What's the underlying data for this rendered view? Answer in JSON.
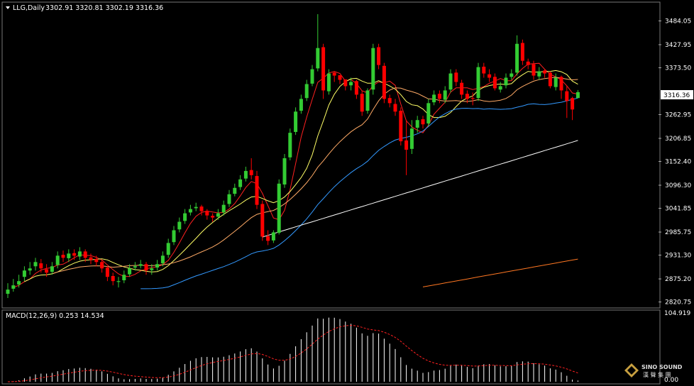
{
  "header": {
    "symbol": "LLG,Daily",
    "ohlc": "3302.91 3320.81 3302.19 3316.36"
  },
  "price_axis": {
    "ticks": [
      "3484.05",
      "3427.95",
      "3373.50",
      "3262.95",
      "3206.85",
      "3152.40",
      "3096.30",
      "3041.85",
      "2985.75",
      "2931.30",
      "2875.20",
      "2820.75"
    ],
    "current_price": "3316.36"
  },
  "macd": {
    "label": "MACD(12,26,9) 0.253 14.534",
    "ticks": [
      "104.919",
      "0.00"
    ]
  },
  "watermark": {
    "brand": "SINO SOUND",
    "cn": "漢 聲 集 團"
  },
  "colors": {
    "bull": "#33cc33",
    "bear": "#ff0000",
    "ma_red": "#ff2020",
    "ma_yellow": "#ffff66",
    "ma_orange_light": "#ffaa66",
    "ma_blue": "#3399ff",
    "ma_white": "#ffffff",
    "ma_orange": "#ff7722",
    "signal": "#ff2020"
  },
  "chart_data": {
    "type": "candlestick",
    "ylim": [
      2810,
      3525
    ],
    "candles_note": "Daily OHLC, approx. read from chart",
    "closes": [
      2850,
      2860,
      2870,
      2895,
      2900,
      2915,
      2900,
      2890,
      2905,
      2930,
      2925,
      2935,
      2930,
      2940,
      2925,
      2920,
      2915,
      2900,
      2880,
      2870,
      2870,
      2885,
      2900,
      2905,
      2910,
      2895,
      2900,
      2910,
      2930,
      2960,
      2990,
      3010,
      3030,
      3040,
      3045,
      3035,
      3025,
      3020,
      3030,
      3050,
      3075,
      3090,
      3110,
      3130,
      3120,
      3050,
      2975,
      2965,
      2985,
      3100,
      3160,
      3220,
      3270,
      3300,
      3335,
      3370,
      3420,
      3320,
      3360,
      3355,
      3345,
      3330,
      3340,
      3310,
      3270,
      3320,
      3420,
      3380,
      3300,
      3290,
      3270,
      3200,
      3180,
      3230,
      3250,
      3240,
      3290,
      3310,
      3300,
      3320,
      3360,
      3340,
      3310,
      3300,
      3300,
      3375,
      3360,
      3350,
      3325,
      3330,
      3350,
      3360,
      3430,
      3390,
      3380,
      3355,
      3365,
      3360,
      3330,
      3350,
      3320,
      3295,
      3275,
      3316
    ],
    "opens": [
      2840,
      2852,
      2862,
      2880,
      2895,
      2905,
      2912,
      2898,
      2892,
      2908,
      2932,
      2924,
      2936,
      2928,
      2940,
      2926,
      2922,
      2915,
      2902,
      2882,
      2868,
      2872,
      2886,
      2902,
      2906,
      2910,
      2896,
      2902,
      2912,
      2932,
      2962,
      2992,
      3012,
      3032,
      3042,
      3046,
      3036,
      3024,
      3022,
      3032,
      3052,
      3076,
      3092,
      3112,
      3132,
      3118,
      3052,
      2976,
      2966,
      2984,
      3098,
      3162,
      3222,
      3272,
      3302,
      3336,
      3372,
      3422,
      3318,
      3362,
      3356,
      3346,
      3332,
      3342,
      3312,
      3272,
      3322,
      3422,
      3378,
      3302,
      3288,
      3272,
      3202,
      3182,
      3232,
      3252,
      3242,
      3292,
      3312,
      3298,
      3322,
      3362,
      3338,
      3312,
      3302,
      3302,
      3376,
      3358,
      3352,
      3322,
      3332,
      3352,
      3362,
      3432,
      3388,
      3382,
      3353,
      3367,
      3362,
      3328,
      3352,
      3318,
      3302,
      3302
    ],
    "highs": [
      2865,
      2875,
      2885,
      2905,
      2915,
      2925,
      2922,
      2910,
      2915,
      2940,
      2942,
      2945,
      2945,
      2950,
      2945,
      2935,
      2930,
      2920,
      2905,
      2890,
      2880,
      2895,
      2910,
      2915,
      2920,
      2915,
      2910,
      2920,
      2940,
      2970,
      3000,
      3020,
      3040,
      3050,
      3055,
      3050,
      3040,
      3030,
      3040,
      3060,
      3085,
      3100,
      3120,
      3140,
      3160,
      3130,
      3060,
      2990,
      2990,
      3110,
      3170,
      3230,
      3280,
      3310,
      3345,
      3380,
      3500,
      3430,
      3370,
      3365,
      3355,
      3345,
      3350,
      3345,
      3320,
      3325,
      3430,
      3430,
      3385,
      3310,
      3300,
      3280,
      3250,
      3250,
      3260,
      3260,
      3300,
      3320,
      3320,
      3330,
      3370,
      3370,
      3345,
      3320,
      3315,
      3385,
      3385,
      3370,
      3360,
      3340,
      3360,
      3370,
      3450,
      3440,
      3395,
      3390,
      3375,
      3370,
      3365,
      3360,
      3355,
      3330,
      3305,
      3321
    ],
    "lows": [
      2830,
      2845,
      2855,
      2870,
      2885,
      2895,
      2890,
      2880,
      2885,
      2900,
      2915,
      2915,
      2920,
      2920,
      2915,
      2910,
      2905,
      2890,
      2870,
      2860,
      2855,
      2865,
      2880,
      2895,
      2900,
      2885,
      2885,
      2895,
      2905,
      2925,
      2955,
      2985,
      3005,
      3025,
      3035,
      3025,
      3015,
      3010,
      3015,
      3025,
      3045,
      3070,
      3085,
      3105,
      3110,
      3040,
      2965,
      2955,
      2960,
      2980,
      3090,
      3155,
      3215,
      3265,
      3295,
      3330,
      3365,
      3300,
      3310,
      3340,
      3335,
      3320,
      3320,
      3300,
      3260,
      3265,
      3310,
      3370,
      3290,
      3280,
      3260,
      3190,
      3120,
      3170,
      3220,
      3230,
      3235,
      3285,
      3290,
      3290,
      3315,
      3330,
      3300,
      3290,
      3285,
      3295,
      3350,
      3340,
      3320,
      3315,
      3325,
      3345,
      3355,
      3380,
      3370,
      3345,
      3345,
      3350,
      3325,
      3320,
      3300,
      3255,
      3250,
      3302
    ]
  }
}
